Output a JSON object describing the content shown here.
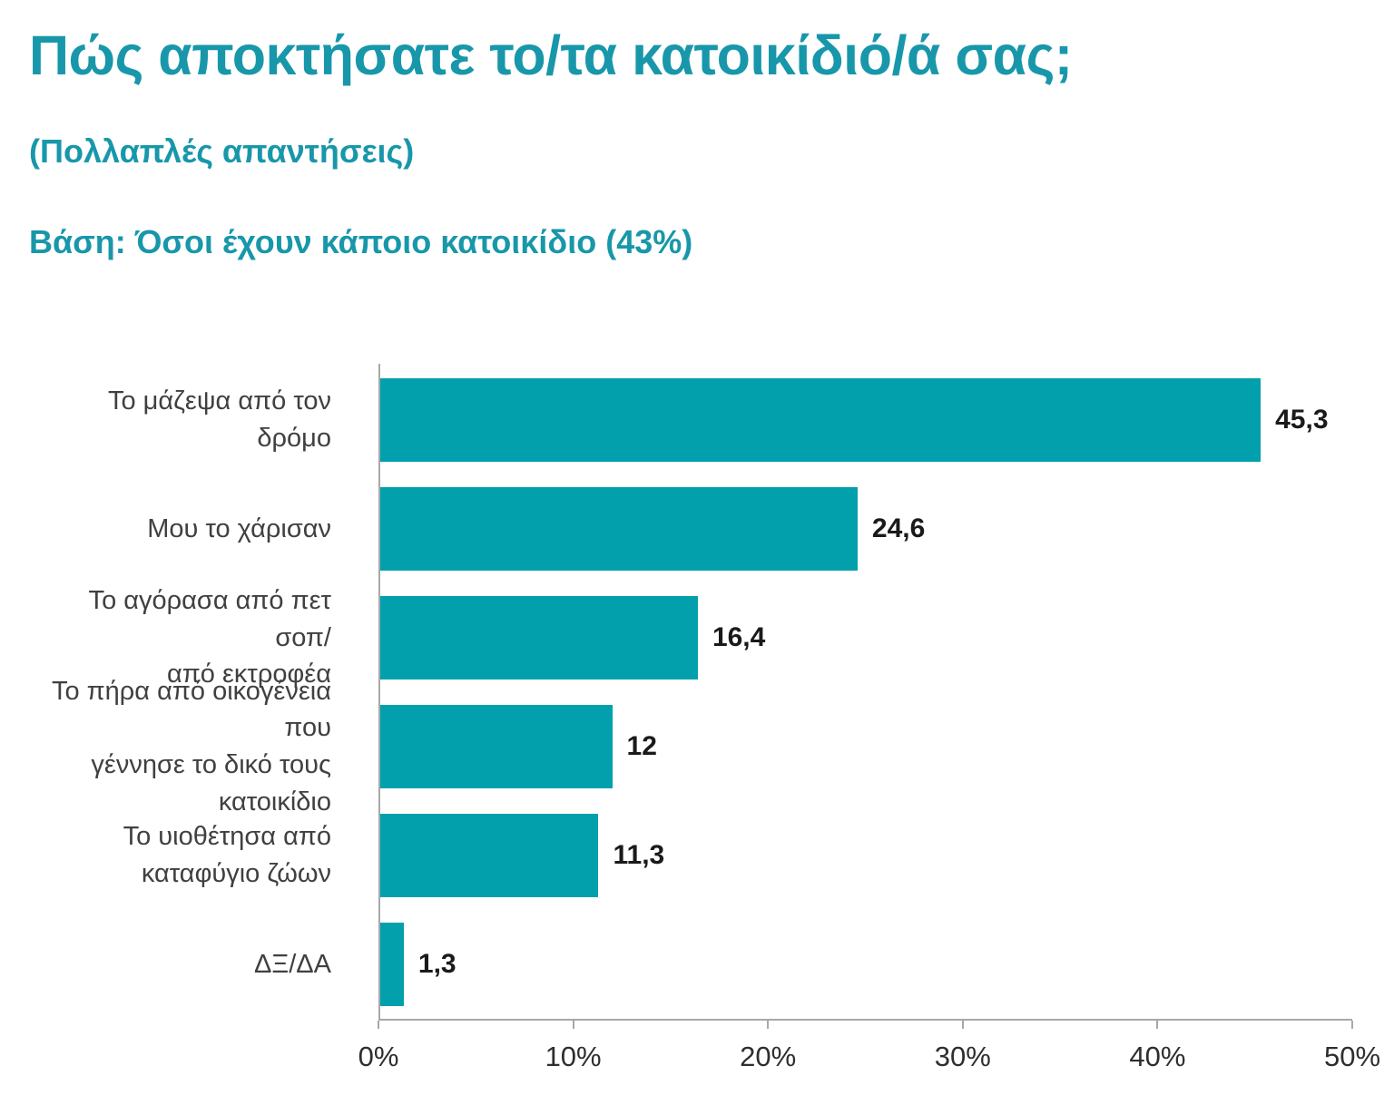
{
  "title": "Πώς αποκτήσατε το/τα κατοικίδιό/ά σας;",
  "subtitle": "(Πολλαπλές απαντήσεις)",
  "base_note": "Βάση: Όσοι έχουν κάποιο κατοικίδιο (43%)",
  "colors": {
    "accent": "#02A0AC",
    "title_text": "#1897AA",
    "axis_line": "#A8A8A8",
    "category_text": "#404040",
    "value_text": "#1A1A1A"
  },
  "chart_data": {
    "type": "bar",
    "orientation": "horizontal",
    "title": "Πώς αποκτήσατε το/τα κατοικίδιό/ά σας;",
    "categories": [
      "Το μάζεψα από τον δρόμο",
      "Μου το χάρισαν",
      "Το αγόρασα από πετ σοπ/\nαπό εκτροφέα",
      "Το πήρα από οικογένεια που\nγέννησε το δικό τους κατοικίδιο",
      "Το υιοθέτησα από\nκαταφύγιο ζώων",
      "ΔΞ/ΔΑ"
    ],
    "values": [
      45.3,
      24.6,
      16.4,
      12,
      11.3,
      1.3
    ],
    "value_labels": [
      "45,3",
      "24,6",
      "16,4",
      "12",
      "11,3",
      "1,3"
    ],
    "xlabel": "",
    "ylabel": "",
    "xlim": [
      0,
      50
    ],
    "x_ticks": [
      "0%",
      "10%",
      "20%",
      "30%",
      "40%",
      "50%"
    ],
    "grid": false,
    "legend": false,
    "bar_color": "#02A0AC"
  }
}
